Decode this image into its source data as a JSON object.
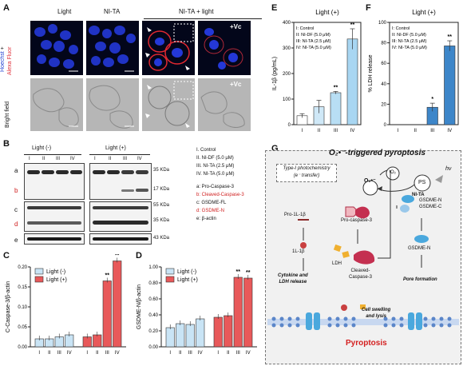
{
  "panel_letters": {
    "a": "A",
    "b": "B",
    "c": "C",
    "d": "D",
    "e": "E",
    "f": "F",
    "g": "G"
  },
  "panelA": {
    "col_titles": [
      "Light",
      "NI-TA",
      "NI-TA + light"
    ],
    "row1_label_a": "Hoechst",
    "row1_label_plus": "+",
    "row1_label_b": "Alexa Fluor",
    "row2_label": "Bright field",
    "vc_label": "+Vc"
  },
  "panelB": {
    "light_minus": "Light (-)",
    "light_plus": "Light (+)",
    "lane_labels": [
      "I",
      "II",
      "III",
      "IV"
    ],
    "row_letters": [
      "a",
      "b",
      "c",
      "d",
      "e"
    ],
    "kda": [
      "35 KDa",
      "17 KDa",
      "55 KDa",
      "35 KDa",
      "43 KDa"
    ],
    "conditions": [
      "I. Control",
      "II. NI-DF (5.0 μM)",
      "III. NI-TA (2.5 μM)",
      "IV. NI-TA (5.0 μM)"
    ],
    "legend": [
      "a: Pro-Caspase-3",
      "b: Cleaved-Caspase-3",
      "c: GSDME-FL",
      "d: GSDME-N",
      "e: β-actin"
    ]
  },
  "panelG": {
    "title": "O₂•⁻-triggered pyroptosis",
    "photochem": "Type-I photochemistry",
    "photochem2": "(e⁻ transfer)",
    "singlet": "³O₂",
    "superoxide": "O₂•⁻",
    "hv": "hν",
    "ps": "PS",
    "ni_ta": "NI-TA",
    "pro_il": "Pro-1L-1β",
    "il": "1L-1β",
    "pro_casp": "Pro-caspase-3",
    "ldh": "LDH",
    "cleaved": "Cleaved-",
    "cleaved2": "Caspase-3",
    "gsdme_n": "GSDME-N",
    "gsdme_c": "GSDME-C",
    "gsdme_n2": "GSDME-N",
    "cytokine": "Cytokine and",
    "cytokine2": "LDH release",
    "pore": "Pore formation",
    "swelling": "Cell swelling",
    "swelling2": "and lysis",
    "pyroptosis": "Pyroptosis"
  },
  "chart_data": [
    {
      "panel": "C",
      "type": "bar",
      "ylabel": "C-Caspase-3/β-actin",
      "categories": [
        "I",
        "II",
        "III",
        "IV"
      ],
      "ylim": [
        0,
        0.2
      ],
      "yticks": [
        0.0,
        0.05,
        0.1,
        0.15,
        0.2
      ],
      "legend": "top-left",
      "series": [
        {
          "name": "Light (-)",
          "color": "#c9e4f5",
          "values": [
            0.02,
            0.02,
            0.025,
            0.03
          ]
        },
        {
          "name": "Light (+)",
          "color": "#e8595a",
          "values": [
            0.025,
            0.03,
            0.165,
            0.215
          ]
        }
      ],
      "significance": {
        "Light (+)": [
          "",
          "",
          "**",
          "**"
        ]
      }
    },
    {
      "panel": "D",
      "type": "bar",
      "ylabel": "GSDME-N/β-actin",
      "categories": [
        "I",
        "II",
        "III",
        "IV"
      ],
      "ylim": [
        0,
        1.0
      ],
      "yticks": [
        0.0,
        0.2,
        0.4,
        0.6,
        0.8,
        1.0
      ],
      "legend": "top-left",
      "series": [
        {
          "name": "Light (-)",
          "color": "#c9e4f5",
          "values": [
            0.24,
            0.29,
            0.28,
            0.35
          ]
        },
        {
          "name": "Light (+)",
          "color": "#e8595a",
          "values": [
            0.37,
            0.39,
            0.87,
            0.86
          ]
        }
      ],
      "significance": {
        "Light (+)": [
          "",
          "",
          "**",
          "**"
        ]
      }
    },
    {
      "panel": "E",
      "type": "bar",
      "title": "Light (+)",
      "ylabel": "IL-1β (pg/mL)",
      "categories": [
        "I",
        "II",
        "III",
        "IV"
      ],
      "ylim": [
        0,
        400
      ],
      "yticks": [
        0,
        100,
        200,
        300,
        400
      ],
      "legend_text": [
        "I: Control",
        "II: NI-DF (5.0 μM)",
        "III: NI-TA (2.5 μM)",
        "IV: NI-TA (5.0 μM)"
      ],
      "values": [
        35,
        70,
        125,
        335
      ],
      "errors": [
        8,
        25,
        5,
        40
      ],
      "significance": [
        "",
        "",
        "**",
        "**"
      ],
      "colors": [
        "#ffffff",
        "#cfe8f7",
        "#b8def4",
        "#a8d6f2"
      ]
    },
    {
      "panel": "F",
      "type": "bar",
      "title": "Light (+)",
      "ylabel": "% LDH release",
      "categories": [
        "I",
        "II",
        "III",
        "IV"
      ],
      "ylim": [
        0,
        100
      ],
      "yticks": [
        0,
        20,
        40,
        60,
        80,
        100
      ],
      "legend_text": [
        "I: Control",
        "II: NI-DF (5.0 μM)",
        "III: NI-TA (2.5 μM)",
        "IV: NI-TA (5.0 μM)"
      ],
      "values": [
        0,
        0,
        17,
        77
      ],
      "errors": [
        0,
        0,
        4,
        5
      ],
      "significance": [
        "",
        "",
        "*",
        "**"
      ],
      "color": "#3d86c9"
    }
  ]
}
